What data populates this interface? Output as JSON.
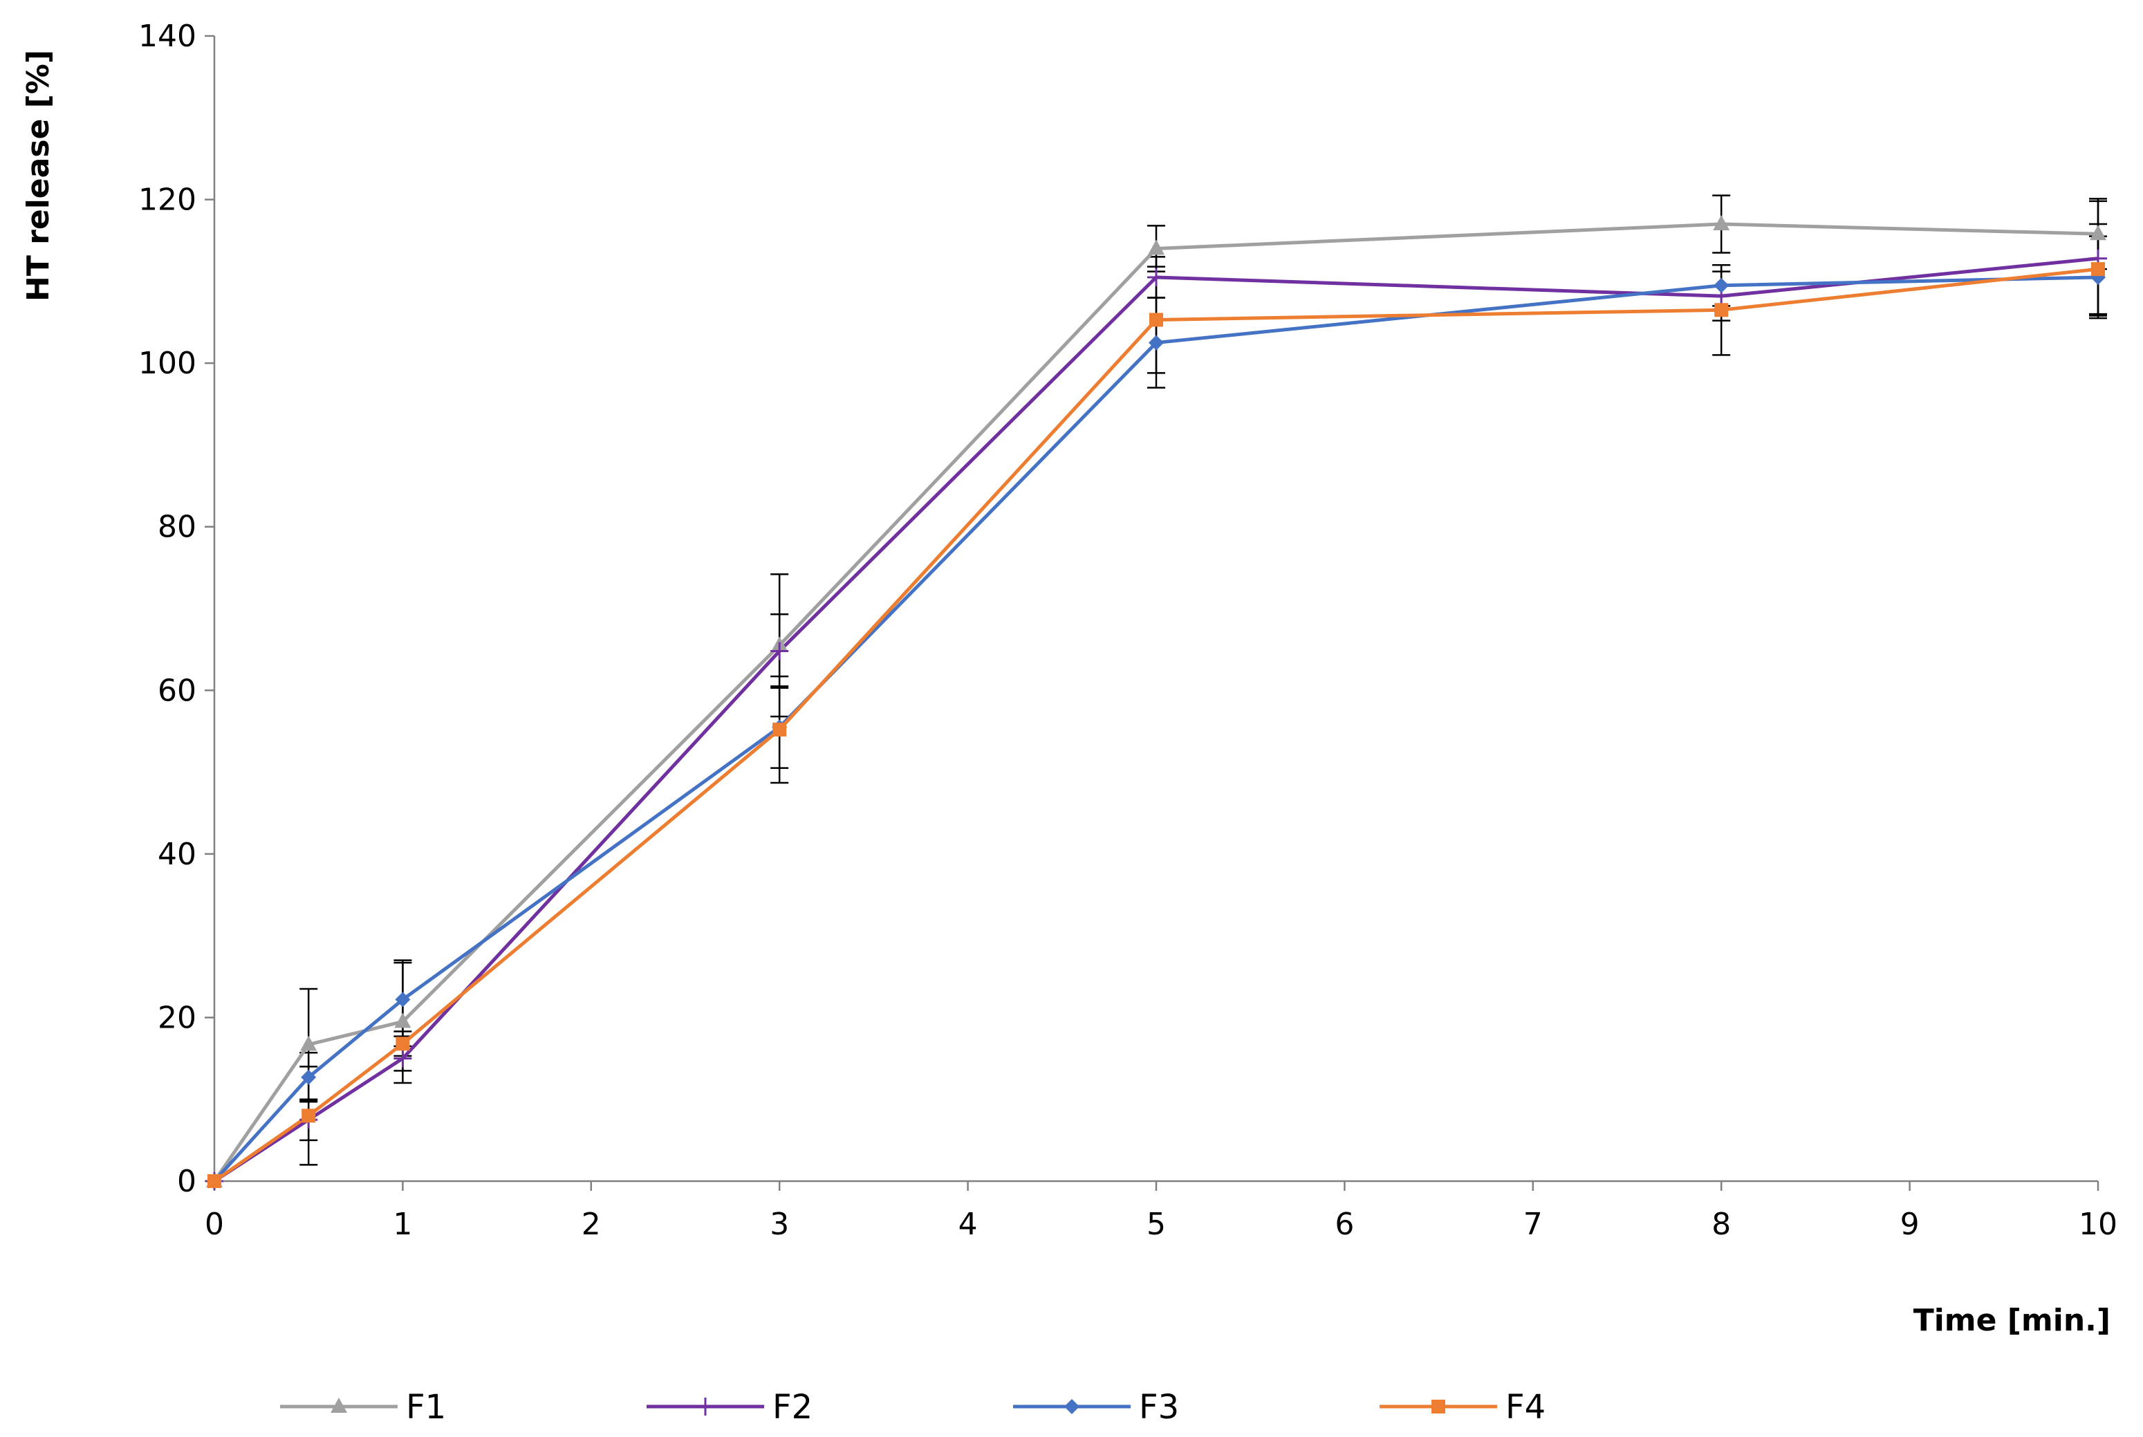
{
  "chart_data": {
    "type": "line",
    "title": "",
    "xlabel": "Time [min.]",
    "ylabel": "HT release [%]",
    "xlim": [
      0,
      10
    ],
    "ylim": [
      0,
      140
    ],
    "xticks": [
      0,
      1,
      2,
      3,
      4,
      5,
      6,
      7,
      8,
      9,
      10
    ],
    "yticks": [
      0,
      20,
      40,
      60,
      80,
      100,
      120,
      140
    ],
    "grid": false,
    "legend_position": "bottom",
    "x": [
      0,
      0.5,
      1,
      3,
      5,
      8,
      10
    ],
    "series": [
      {
        "name": "F1",
        "color": "#a0a0a0",
        "marker": "triangle",
        "values": [
          0,
          16.7,
          19.5,
          65.5,
          114.0,
          117.0,
          115.8
        ],
        "errors": [
          0,
          6.8,
          7.5,
          8.7,
          2.8,
          3.5,
          4.3
        ]
      },
      {
        "name": "F2",
        "color": "#7030a0",
        "marker": "plus",
        "values": [
          0,
          7.5,
          15.0,
          64.8,
          110.5,
          108.2,
          112.8
        ],
        "errors": [
          0,
          2.5,
          1.5,
          4.5,
          2.5,
          3.0,
          7.0
        ]
      },
      {
        "name": "F3",
        "color": "#4472c4",
        "marker": "diamond",
        "values": [
          0,
          12.7,
          22.2,
          55.5,
          102.5,
          109.5,
          110.5
        ],
        "errors": [
          0,
          3.0,
          4.5,
          5.0,
          5.5,
          2.5,
          5.0
        ]
      },
      {
        "name": "F4",
        "color": "#ed7d31",
        "marker": "square",
        "values": [
          0,
          8.0,
          16.8,
          55.2,
          105.3,
          106.5,
          111.5
        ],
        "errors": [
          0,
          6.0,
          1.5,
          6.5,
          6.5,
          5.5,
          5.5
        ]
      }
    ]
  }
}
